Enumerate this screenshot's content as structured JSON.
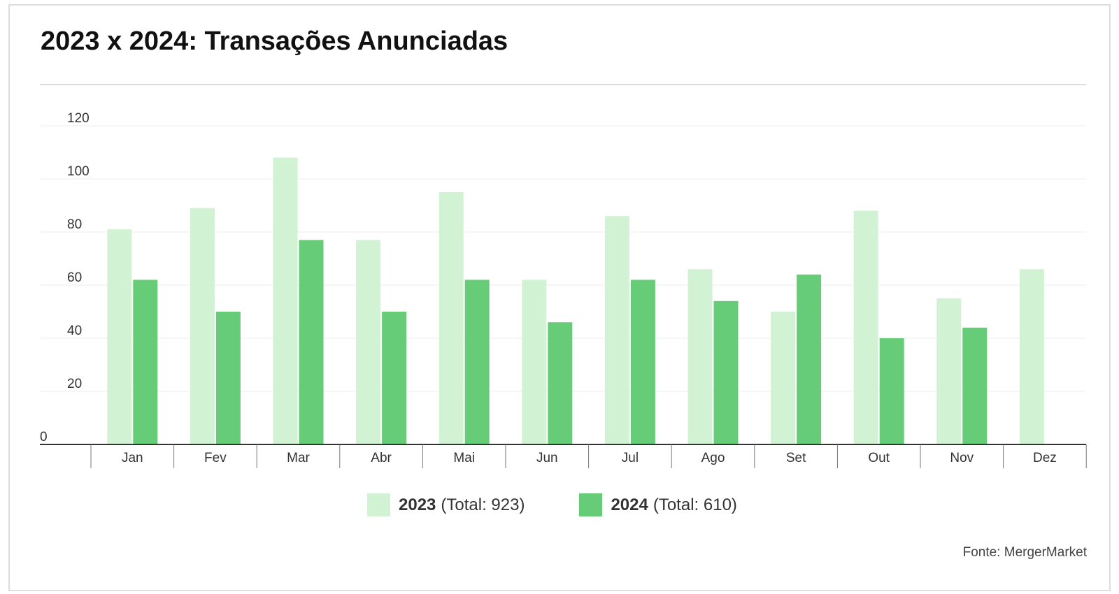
{
  "title": "2023 x 2024: Transações Anunciadas",
  "source": "Fonte: MergerMarket",
  "legend": [
    {
      "series": "2023",
      "detail": "(Total: 923)",
      "color": "#d2f2d4"
    },
    {
      "series": "2024",
      "detail": "(Total: 610)",
      "color": "#66cc77"
    }
  ],
  "chart_data": {
    "type": "bar",
    "title": "2023 x 2024: Transações Anunciadas",
    "xlabel": "",
    "ylabel": "",
    "ylim": [
      0,
      120
    ],
    "yticks": [
      0,
      20,
      40,
      60,
      80,
      100,
      120
    ],
    "grid": true,
    "legend_position": "bottom-center",
    "categories": [
      "Jan",
      "Fev",
      "Mar",
      "Abr",
      "Mai",
      "Jun",
      "Jul",
      "Ago",
      "Set",
      "Out",
      "Nov",
      "Dez"
    ],
    "series": [
      {
        "name": "2023",
        "color": "#d2f2d4",
        "values": [
          81,
          89,
          108,
          77,
          95,
          62,
          86,
          66,
          50,
          88,
          55,
          66
        ]
      },
      {
        "name": "2024",
        "color": "#66cc77",
        "values": [
          62,
          50,
          77,
          50,
          62,
          46,
          62,
          54,
          64,
          40,
          44,
          null
        ]
      }
    ]
  }
}
